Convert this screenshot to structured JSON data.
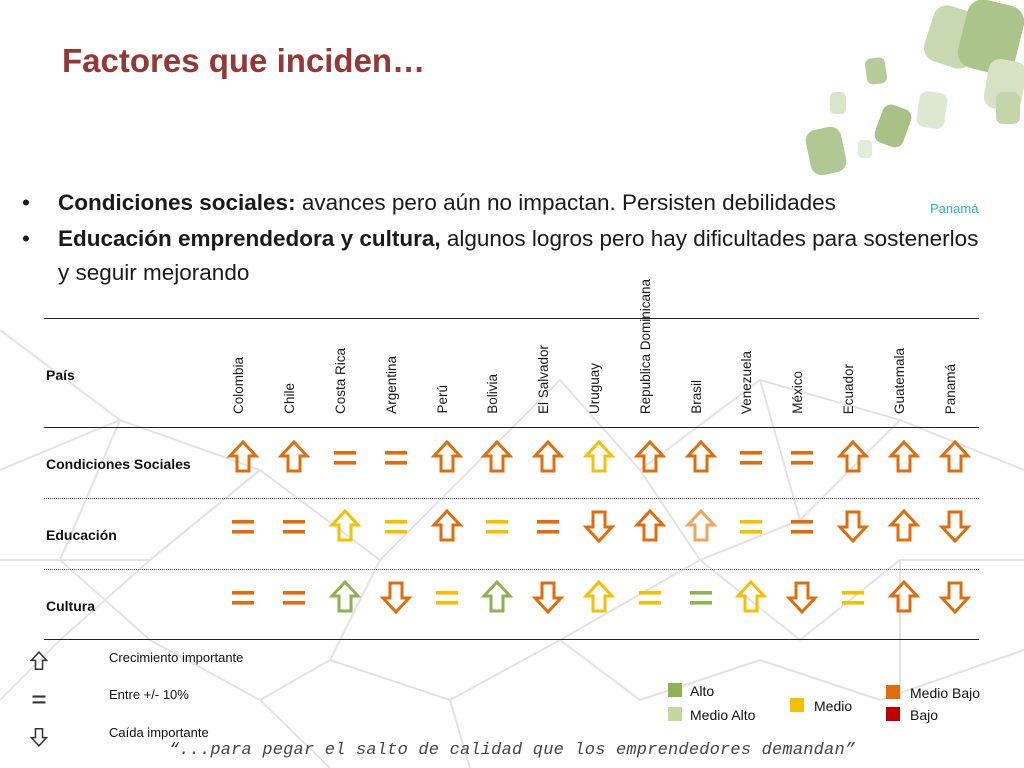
{
  "slide": {
    "title": "Factores que inciden…",
    "bullets": [
      {
        "bold": "Condiciones sociales:",
        "text": "  avances pero aún no impactan. Persisten debilidades"
      },
      {
        "bold": "Educación emprendedora y cultura,",
        "text": " algunos logros pero hay dificultades para sostenerlos y seguir mejorando"
      }
    ],
    "overlay_text": "Panamá",
    "quote": "“...para pegar el salto de calidad que los emprendedores demandan”"
  },
  "table": {
    "header_label": "País",
    "countries": [
      "Colombia",
      "Chile",
      "Costa Rica",
      "Argentina",
      "Perú",
      "Bolivia",
      "El Salvador",
      "Uruguay",
      "Republica Dominicana",
      "Brasil",
      "Venezuela",
      "México",
      "Ecuador",
      "Guatemala",
      "Panamá"
    ],
    "rows": [
      {
        "label": "Condiciones Sociales",
        "cells": [
          {
            "sym": "up",
            "level": "medio_bajo"
          },
          {
            "sym": "up",
            "level": "medio_bajo"
          },
          {
            "sym": "eq",
            "level": "medio_bajo"
          },
          {
            "sym": "eq",
            "level": "medio_bajo"
          },
          {
            "sym": "up",
            "level": "medio_bajo"
          },
          {
            "sym": "up",
            "level": "medio_bajo"
          },
          {
            "sym": "up",
            "level": "medio_bajo"
          },
          {
            "sym": "up",
            "level": "medio"
          },
          {
            "sym": "up",
            "level": "medio_bajo"
          },
          {
            "sym": "up",
            "level": "medio_bajo"
          },
          {
            "sym": "eq",
            "level": "medio_bajo"
          },
          {
            "sym": "eq",
            "level": "medio_bajo"
          },
          {
            "sym": "up",
            "level": "medio_bajo"
          },
          {
            "sym": "up",
            "level": "medio_bajo"
          },
          {
            "sym": "up",
            "level": "medio_bajo"
          }
        ]
      },
      {
        "label": "Educación",
        "cells": [
          {
            "sym": "eq",
            "level": "medio_bajo"
          },
          {
            "sym": "eq",
            "level": "medio_bajo"
          },
          {
            "sym": "up",
            "level": "medio"
          },
          {
            "sym": "eq",
            "level": "medio"
          },
          {
            "sym": "up",
            "level": "medio_bajo"
          },
          {
            "sym": "eq",
            "level": "medio"
          },
          {
            "sym": "eq",
            "level": "medio_bajo"
          },
          {
            "sym": "down",
            "level": "medio_bajo"
          },
          {
            "sym": "up",
            "level": "medio_bajo"
          },
          {
            "sym": "up",
            "level": "light"
          },
          {
            "sym": "eq",
            "level": "medio"
          },
          {
            "sym": "eq",
            "level": "medio_bajo"
          },
          {
            "sym": "down",
            "level": "medio_bajo"
          },
          {
            "sym": "up",
            "level": "medio_bajo"
          },
          {
            "sym": "down",
            "level": "medio_bajo"
          }
        ]
      },
      {
        "label": "Cultura",
        "cells": [
          {
            "sym": "eq",
            "level": "medio_bajo"
          },
          {
            "sym": "eq",
            "level": "medio_bajo"
          },
          {
            "sym": "up",
            "level": "alto"
          },
          {
            "sym": "down",
            "level": "medio_bajo"
          },
          {
            "sym": "eq",
            "level": "medio"
          },
          {
            "sym": "up",
            "level": "alto"
          },
          {
            "sym": "down",
            "level": "medio_bajo"
          },
          {
            "sym": "up",
            "level": "medio"
          },
          {
            "sym": "eq",
            "level": "medio"
          },
          {
            "sym": "eq",
            "level": "alto"
          },
          {
            "sym": "up",
            "level": "medio"
          },
          {
            "sym": "down",
            "level": "medio_bajo"
          },
          {
            "sym": "eq",
            "level": "medio"
          },
          {
            "sym": "up",
            "level": "medio_bajo"
          },
          {
            "sym": "down",
            "level": "medio_bajo"
          }
        ]
      }
    ]
  },
  "legend": {
    "symbols": [
      {
        "sym": "up",
        "label": "Crecimiento importante"
      },
      {
        "sym": "eq",
        "label": "Entre +/- 10%"
      },
      {
        "sym": "down",
        "label": "Caída  importante"
      }
    ],
    "levels": [
      {
        "key": "alto",
        "label": "Alto",
        "color": "#8db254"
      },
      {
        "key": "medio_alto",
        "label": "Medio Alto",
        "color": "#c3d69b"
      },
      {
        "key": "medio",
        "label": "Medio",
        "color": "#f5c000"
      },
      {
        "key": "medio_bajo",
        "label": "Medio Bajo",
        "color": "#e36c0a"
      },
      {
        "key": "bajo",
        "label": "Bajo",
        "color": "#c00000"
      }
    ]
  },
  "colors": {
    "title": "#953735",
    "medio_bajo": "#e36c0a",
    "medio": "#f5c000",
    "alto": "#8db254",
    "light": "#f2a35c",
    "legend_symbol": "#333333"
  }
}
